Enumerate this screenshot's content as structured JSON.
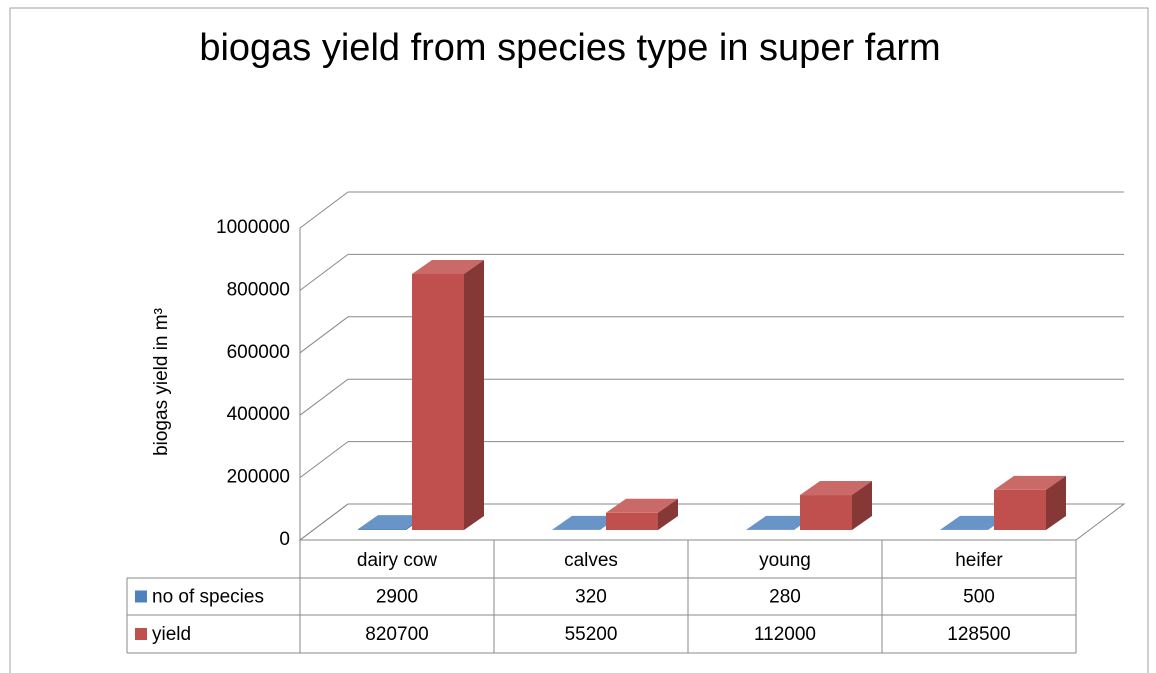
{
  "chart_data": {
    "type": "bar3d",
    "title": "biogas yield from species type in super farm",
    "y_label": "biogas yield in m³",
    "categories": [
      "dairy cow",
      "calves",
      "young",
      "heifer"
    ],
    "series": [
      {
        "name": "no of species",
        "color": "#4f81bd",
        "values": [
          2900,
          320,
          280,
          500
        ]
      },
      {
        "name": "yield",
        "color": "#c0504d",
        "values": [
          820700,
          55200,
          112000,
          128500
        ]
      }
    ],
    "ylim": [
      0,
      1000000
    ],
    "yticks": [
      0,
      200000,
      400000,
      600000,
      800000,
      1000000
    ],
    "grid": true,
    "data_table": true
  }
}
